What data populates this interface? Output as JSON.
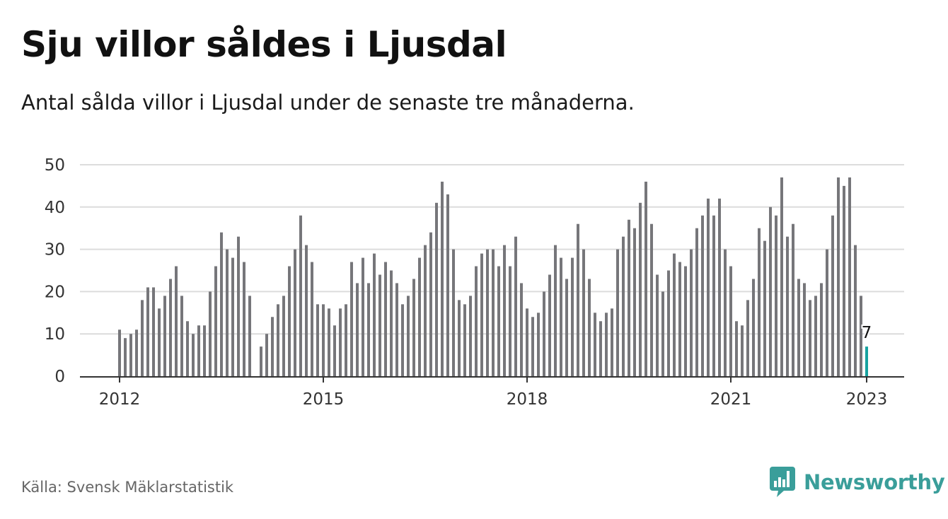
{
  "header": {
    "title": "Sju villor såldes i Ljusdal",
    "subtitle": "Antal sålda villor i Ljusdal under de senaste tre månaderna."
  },
  "footer": {
    "source": "Källa: Svensk Mäklarstatistik",
    "brand": "Newsworthy"
  },
  "colors": {
    "bar": "#76767a",
    "highlight": "#17a3a0",
    "brand": "#3a9e9a",
    "grid": "#dcdcdc",
    "axis": "#333333"
  },
  "chart_data": {
    "type": "bar",
    "x_start": "2012-01",
    "interval": "month",
    "ylim": [
      0,
      50
    ],
    "y_ticks": [
      0,
      10,
      20,
      30,
      40,
      50
    ],
    "x_ticks": [
      "2012",
      "2015",
      "2018",
      "2021",
      "2023"
    ],
    "grid": true,
    "highlight_last_label": "7",
    "values": [
      11,
      9,
      10,
      11,
      18,
      21,
      21,
      16,
      19,
      23,
      26,
      19,
      13,
      10,
      12,
      12,
      20,
      26,
      34,
      30,
      28,
      33,
      27,
      19,
      null,
      7,
      10,
      14,
      17,
      19,
      26,
      30,
      38,
      31,
      27,
      17,
      17,
      16,
      12,
      16,
      17,
      27,
      22,
      28,
      22,
      29,
      24,
      27,
      25,
      22,
      17,
      19,
      23,
      28,
      31,
      34,
      41,
      46,
      43,
      30,
      18,
      17,
      19,
      26,
      29,
      30,
      30,
      26,
      31,
      26,
      33,
      22,
      16,
      14,
      15,
      20,
      24,
      31,
      28,
      23,
      28,
      36,
      30,
      23,
      15,
      13,
      15,
      16,
      30,
      33,
      37,
      35,
      41,
      46,
      36,
      24,
      20,
      25,
      29,
      27,
      26,
      30,
      35,
      38,
      42,
      38,
      42,
      30,
      26,
      13,
      12,
      18,
      23,
      35,
      32,
      40,
      38,
      47,
      33,
      36,
      23,
      22,
      18,
      19,
      22,
      30,
      38,
      47,
      45,
      47,
      31,
      19,
      7
    ]
  }
}
